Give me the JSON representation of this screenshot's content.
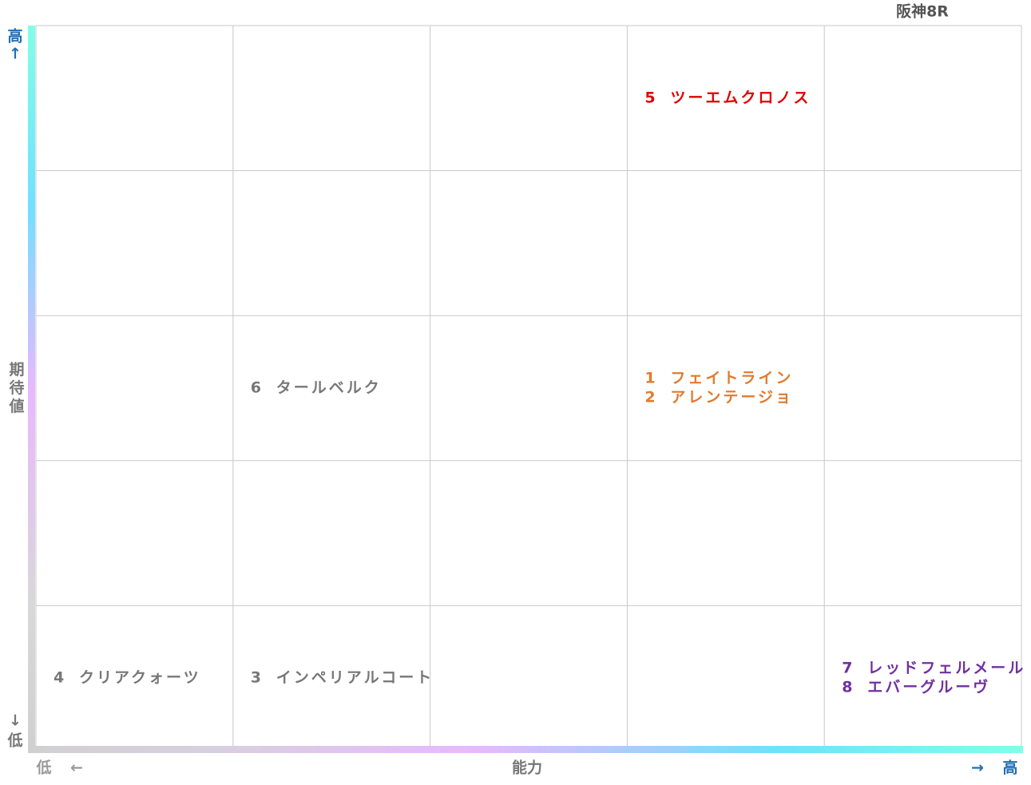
{
  "title": "阪神8R",
  "y_axis": {
    "high": "高",
    "up": "↑",
    "label": "期待値",
    "down": "↓",
    "low": "低"
  },
  "x_axis": {
    "low": "低",
    "left": "←",
    "label": "能力",
    "right": "→",
    "high": "高"
  },
  "grid": {
    "rows": [
      [
        [],
        [],
        [],
        [
          {
            "number": "5",
            "name": "ツーエムクロノス",
            "color": "#e00000"
          }
        ],
        []
      ],
      [
        [],
        [],
        [],
        [],
        []
      ],
      [
        [],
        [
          {
            "number": "6",
            "name": "タールベルク",
            "color": "#777777"
          }
        ],
        [],
        [
          {
            "number": "1",
            "name": "フェイトライン",
            "color": "#e07b30"
          },
          {
            "number": "2",
            "name": "アレンテージョ",
            "color": "#e07b30"
          }
        ],
        []
      ],
      [
        [],
        [],
        [],
        [],
        []
      ],
      [
        [
          {
            "number": "4",
            "name": "クリアクォーツ",
            "color": "#777777"
          }
        ],
        [
          {
            "number": "3",
            "name": "インペリアルコート",
            "color": "#777777"
          }
        ],
        [],
        [],
        [
          {
            "number": "7",
            "name": "レッドフェルメール",
            "color": "#7030a0"
          },
          {
            "number": "8",
            "name": "エバーグルーヴ",
            "color": "#7030a0"
          }
        ]
      ]
    ]
  }
}
